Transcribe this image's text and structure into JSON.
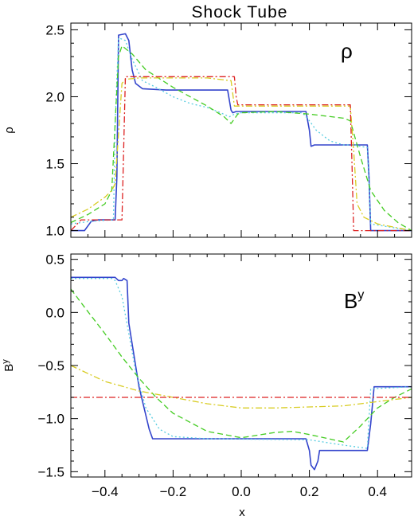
{
  "chart_data": {
    "title": "Shock Tube",
    "panels": [
      {
        "type": "line",
        "label": "ρ",
        "label_sup": "",
        "ylabel": "ρ",
        "ylabel_sup": "",
        "xlim": [
          -0.5,
          0.5
        ],
        "ylim": [
          0.95,
          2.55
        ],
        "xticks": [
          -0.4,
          -0.2,
          0.0,
          0.2,
          0.4
        ],
        "xtick_labels": [
          "",
          "",
          "",
          "",
          ""
        ],
        "yticks": [
          1.0,
          1.5,
          2.0,
          2.5
        ],
        "ytick_labels": [
          "1.0",
          "1.5",
          "2.0",
          "2.5"
        ],
        "grid": false,
        "series": [
          {
            "color": "#3344cc",
            "dash": "solid",
            "x": [
              -0.5,
              -0.46,
              -0.44,
              -0.42,
              -0.37,
              -0.365,
              -0.36,
              -0.34,
              -0.33,
              -0.32,
              -0.31,
              -0.29,
              -0.22,
              -0.1,
              -0.04,
              -0.03,
              -0.025,
              -0.015,
              0.0,
              0.1,
              0.19,
              0.2,
              0.205,
              0.215,
              0.23,
              0.3,
              0.37,
              0.375,
              0.38,
              0.5
            ],
            "y": [
              1.0,
              1.0,
              1.07,
              1.08,
              1.08,
              1.4,
              2.46,
              2.47,
              2.42,
              2.2,
              2.1,
              2.06,
              2.05,
              2.05,
              2.05,
              1.9,
              1.88,
              1.89,
              1.89,
              1.89,
              1.89,
              1.75,
              1.63,
              1.64,
              1.64,
              1.64,
              1.64,
              1.4,
              1.0,
              1.0
            ]
          },
          {
            "color": "#55cce0",
            "dash": "dotted",
            "x": [
              -0.5,
              -0.44,
              -0.375,
              -0.37,
              -0.36,
              -0.34,
              -0.32,
              -0.29,
              -0.25,
              -0.2,
              -0.15,
              -0.1,
              -0.06,
              -0.035,
              -0.02,
              0.0,
              0.1,
              0.18,
              0.2,
              0.22,
              0.26,
              0.3,
              0.33,
              0.37,
              0.38,
              0.5
            ],
            "y": [
              1.05,
              1.07,
              1.08,
              1.8,
              2.44,
              2.42,
              2.28,
              2.12,
              2.07,
              2.0,
              1.95,
              1.92,
              1.88,
              1.85,
              1.87,
              1.88,
              1.88,
              1.88,
              1.82,
              1.75,
              1.67,
              1.64,
              1.64,
              1.62,
              1.05,
              1.0
            ]
          },
          {
            "color": "#44cc22",
            "dash": "dashed",
            "x": [
              -0.5,
              -0.45,
              -0.4,
              -0.38,
              -0.37,
              -0.36,
              -0.35,
              -0.32,
              -0.28,
              -0.2,
              -0.1,
              -0.05,
              -0.03,
              -0.01,
              0.0,
              0.1,
              0.2,
              0.3,
              0.32,
              0.35,
              0.38,
              0.42,
              0.46,
              0.5
            ],
            "y": [
              1.06,
              1.12,
              1.2,
              1.3,
              1.8,
              2.3,
              2.38,
              2.32,
              2.2,
              2.07,
              1.93,
              1.85,
              1.8,
              1.87,
              1.88,
              1.89,
              1.87,
              1.84,
              1.82,
              1.55,
              1.3,
              1.15,
              1.06,
              1.0
            ]
          },
          {
            "color": "#d8cc22",
            "dash": "dashdot",
            "x": [
              -0.5,
              -0.45,
              -0.4,
              -0.38,
              -0.37,
              -0.35,
              -0.34,
              -0.3,
              -0.1,
              -0.03,
              -0.02,
              0.1,
              0.2,
              0.32,
              0.33,
              0.34,
              0.36,
              0.4,
              0.5
            ],
            "y": [
              1.1,
              1.16,
              1.25,
              1.3,
              1.35,
              2.1,
              2.13,
              2.14,
              2.14,
              2.12,
              1.93,
              1.93,
              1.93,
              1.93,
              1.6,
              1.2,
              1.1,
              1.05,
              1.0
            ]
          },
          {
            "color": "#dd2222",
            "dash": "dashdot",
            "x": [
              -0.5,
              -0.47,
              -0.35,
              -0.345,
              -0.34,
              -0.3,
              -0.02,
              -0.015,
              -0.01,
              0.3,
              0.32,
              0.325,
              0.33,
              0.5
            ],
            "y": [
              1.0,
              1.08,
              1.08,
              1.6,
              2.15,
              2.15,
              2.15,
              2.0,
              1.94,
              1.94,
              1.94,
              1.5,
              1.0,
              1.0
            ]
          }
        ]
      },
      {
        "type": "line",
        "label": "B",
        "label_sup": "y",
        "ylabel": "B",
        "ylabel_sup": "y",
        "xlabel": "x",
        "xlim": [
          -0.5,
          0.5
        ],
        "ylim": [
          -1.55,
          0.55
        ],
        "xticks": [
          -0.4,
          -0.2,
          0.0,
          0.2,
          0.4
        ],
        "xtick_labels": [
          "−0.4",
          "−0.2",
          "0.0",
          "0.2",
          "0.4"
        ],
        "yticks": [
          -1.5,
          -1.0,
          -0.5,
          0.0,
          0.5
        ],
        "ytick_labels": [
          "−1.5",
          "−1.0",
          "−0.5",
          "0.0",
          "0.5"
        ],
        "grid": false,
        "series": [
          {
            "color": "#3344cc",
            "dash": "solid",
            "x": [
              -0.5,
              -0.37,
              -0.36,
              -0.35,
              -0.345,
              -0.335,
              -0.33,
              -0.3,
              -0.27,
              -0.26,
              -0.22,
              0.19,
              0.2,
              0.205,
              0.215,
              0.225,
              0.23,
              0.37,
              0.38,
              0.39,
              0.5
            ],
            "y": [
              0.33,
              0.33,
              0.3,
              0.3,
              0.32,
              0.3,
              -0.1,
              -0.7,
              -1.1,
              -1.19,
              -1.19,
              -1.19,
              -1.3,
              -1.44,
              -1.48,
              -1.4,
              -1.3,
              -1.3,
              -1.05,
              -0.7,
              -0.7
            ]
          },
          {
            "color": "#55cce0",
            "dash": "dotted",
            "x": [
              -0.5,
              -0.38,
              -0.37,
              -0.35,
              -0.33,
              -0.31,
              -0.28,
              -0.24,
              -0.2,
              -0.1,
              0.2,
              0.3,
              0.37,
              0.38,
              0.5
            ],
            "y": [
              0.32,
              0.32,
              0.3,
              0.15,
              -0.2,
              -0.55,
              -0.9,
              -1.1,
              -1.17,
              -1.19,
              -1.2,
              -1.25,
              -1.28,
              -0.72,
              -0.7
            ]
          },
          {
            "color": "#44cc22",
            "dash": "dashed",
            "x": [
              -0.5,
              -0.46,
              -0.4,
              -0.35,
              -0.3,
              -0.25,
              -0.2,
              -0.1,
              0.0,
              0.1,
              0.15,
              0.2,
              0.3,
              0.35,
              0.4,
              0.45,
              0.5
            ],
            "y": [
              0.22,
              0.05,
              -0.2,
              -0.42,
              -0.62,
              -0.8,
              -0.95,
              -1.12,
              -1.18,
              -1.13,
              -1.12,
              -1.15,
              -1.22,
              -1.07,
              -0.9,
              -0.8,
              -0.72
            ]
          },
          {
            "color": "#d8cc22",
            "dash": "dashdot",
            "x": [
              -0.5,
              -0.4,
              -0.3,
              -0.2,
              -0.1,
              0.0,
              0.1,
              0.2,
              0.3,
              0.4,
              0.5
            ],
            "y": [
              -0.5,
              -0.65,
              -0.74,
              -0.8,
              -0.86,
              -0.9,
              -0.9,
              -0.89,
              -0.88,
              -0.84,
              -0.8
            ]
          },
          {
            "color": "#dd2222",
            "dash": "dashdot",
            "x": [
              -0.5,
              0.5
            ],
            "y": [
              -0.8,
              -0.8
            ]
          }
        ]
      }
    ]
  }
}
